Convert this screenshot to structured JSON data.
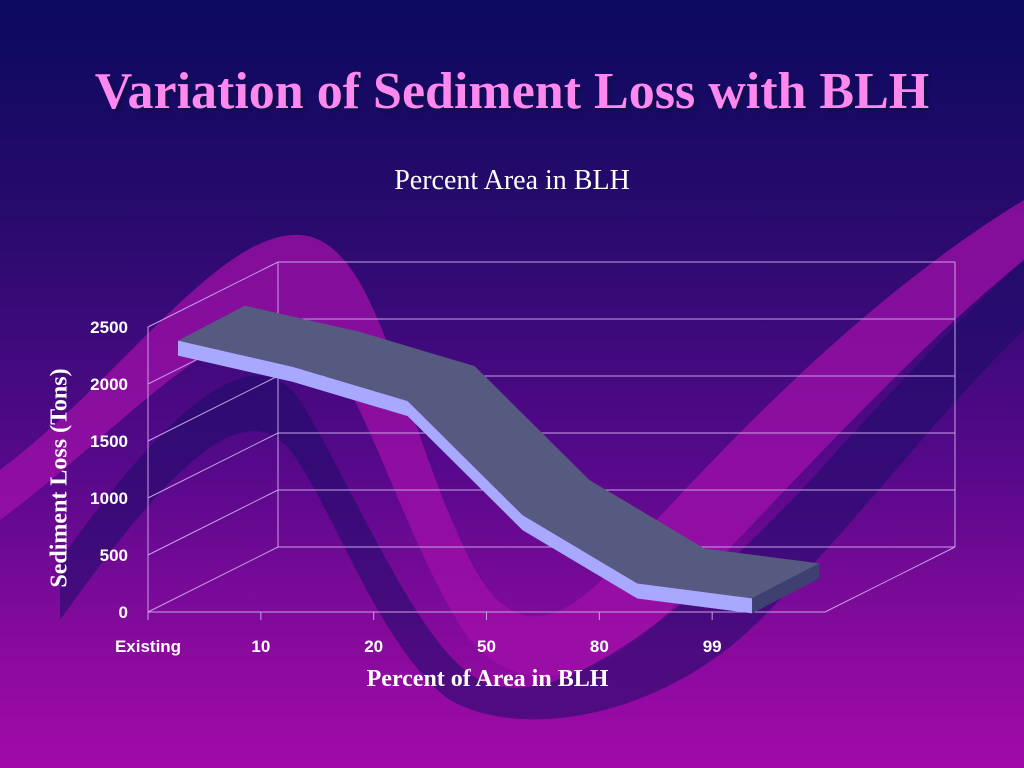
{
  "slide": {
    "title": "Variation of Sediment Loss with BLH"
  },
  "colors": {
    "title": "#ff88ee",
    "ribbon_top": "#565a80",
    "ribbon_front": "#a8a8ff",
    "gridline": "#c8a0e8"
  },
  "chart_data": {
    "type": "area",
    "title": "Percent Area in BLH",
    "xlabel": "Percent of Area in BLH",
    "ylabel": "Sediment Loss (Tons)",
    "categories": [
      "Existing",
      "10",
      "20",
      "50",
      "80",
      "99"
    ],
    "series": [
      {
        "values": [
          2380,
          2150,
          1850,
          850,
          250,
          120
        ]
      }
    ],
    "ylim": [
      0,
      2500
    ],
    "yticks": [
      0,
      500,
      1000,
      1500,
      2000,
      2500
    ],
    "grid": true,
    "projection": "3d"
  }
}
